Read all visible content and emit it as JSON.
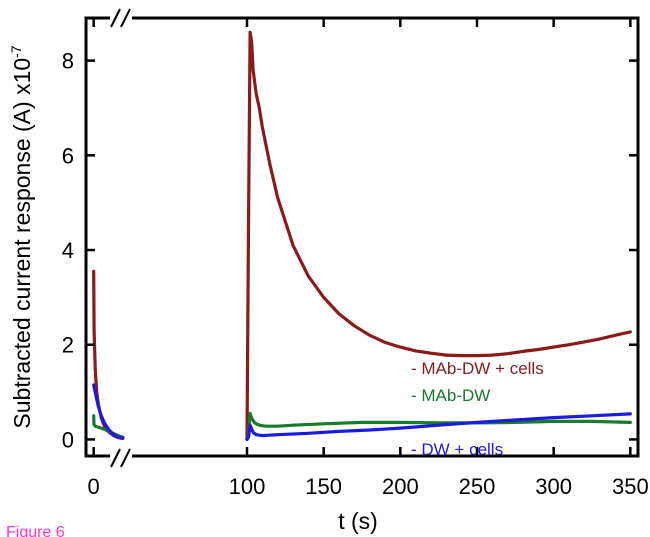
{
  "chart_data": {
    "type": "line",
    "xlabel": "t (s)",
    "ylabel": "Subtracted current response (A) x10",
    "ylabel_exponent": "-7",
    "x_axis_break": true,
    "xlim": [
      -5,
      355
    ],
    "ylim": [
      -0.35,
      8.9
    ],
    "x_ticks": [
      {
        "value": 0,
        "label": "0"
      },
      {
        "value": 100,
        "label": "100"
      },
      {
        "value": 150,
        "label": "150"
      },
      {
        "value": 200,
        "label": "200"
      },
      {
        "value": 250,
        "label": "250"
      },
      {
        "value": 300,
        "label": "300"
      },
      {
        "value": 350,
        "label": "350"
      }
    ],
    "y_ticks": [
      {
        "value": 0,
        "label": "0"
      },
      {
        "value": 2,
        "label": "2"
      },
      {
        "value": 4,
        "label": "4"
      },
      {
        "value": 6,
        "label": "6"
      },
      {
        "value": 8,
        "label": "8"
      }
    ],
    "series": [
      {
        "name": "MAb-DW + cells",
        "color": "#8b1a1a",
        "segments": [
          {
            "x": [
              0,
              0.3,
              1,
              2,
              3,
              5,
              7,
              10,
              13,
              16,
              19
            ],
            "y": [
              3.55,
              2.3,
              1.5,
              1.0,
              0.75,
              0.45,
              0.28,
              0.15,
              0.08,
              0.04,
              0.02
            ]
          },
          {
            "x": [
              100,
              101,
              102,
              103,
              104,
              106,
              108,
              110,
              115,
              120,
              130,
              140,
              150,
              160,
              170,
              180,
              190,
              200,
              210,
              220,
              230,
              240,
              250,
              260,
              270,
              280,
              290,
              300,
              310,
              320,
              330,
              340,
              350
            ],
            "y": [
              0.0,
              4.5,
              8.6,
              8.4,
              7.8,
              7.3,
              7.0,
              6.6,
              5.8,
              5.1,
              4.1,
              3.45,
              3.0,
              2.65,
              2.4,
              2.2,
              2.05,
              1.95,
              1.87,
              1.82,
              1.78,
              1.77,
              1.77,
              1.78,
              1.81,
              1.86,
              1.9,
              1.95,
              2.0,
              2.06,
              2.12,
              2.2,
              2.27
            ]
          }
        ]
      },
      {
        "name": "MAb-DW",
        "color": "#1a7a2e",
        "segments": [
          {
            "x": [
              0,
              0.2,
              1,
              3,
              5,
              8,
              12,
              16,
              19
            ],
            "y": [
              0.5,
              0.32,
              0.28,
              0.26,
              0.24,
              0.2,
              0.14,
              0.08,
              0.05
            ]
          },
          {
            "x": [
              100,
              101,
              102,
              103,
              105,
              108,
              112,
              120,
              130,
              150,
              175,
              200,
              225,
              250,
              275,
              300,
              325,
              350
            ],
            "y": [
              0.0,
              0.1,
              0.55,
              0.45,
              0.35,
              0.3,
              0.28,
              0.28,
              0.3,
              0.33,
              0.36,
              0.36,
              0.35,
              0.35,
              0.36,
              0.38,
              0.38,
              0.36
            ]
          }
        ]
      },
      {
        "name": "DW + cells",
        "color": "#1b1be0",
        "segments": [
          {
            "x": [
              0,
              1,
              2,
              3,
              5,
              7,
              10,
              13,
              16,
              19
            ],
            "y": [
              1.15,
              1.0,
              0.85,
              0.7,
              0.5,
              0.35,
              0.2,
              0.1,
              0.05,
              0.03
            ]
          },
          {
            "x": [
              100,
              101,
              102,
              104,
              106,
              110,
              120,
              140,
              160,
              180,
              200,
              225,
              250,
              275,
              300,
              325,
              350
            ],
            "y": [
              0.0,
              0.05,
              0.3,
              0.15,
              0.1,
              0.08,
              0.1,
              0.13,
              0.17,
              0.2,
              0.24,
              0.3,
              0.36,
              0.41,
              0.46,
              0.5,
              0.54
            ]
          }
        ]
      }
    ],
    "legend": [
      {
        "text": "- MAb-DW + cells",
        "color": "#8b1a1a"
      },
      {
        "text": "- MAb-DW",
        "color": "#1a7a2e"
      },
      {
        "text": "- DW + cells",
        "color": "#1b1be0"
      }
    ],
    "legend_placement": "inside, lower-right",
    "grid": false
  },
  "caption": {
    "text": "Figure 6",
    "color": "#ff33cc"
  }
}
